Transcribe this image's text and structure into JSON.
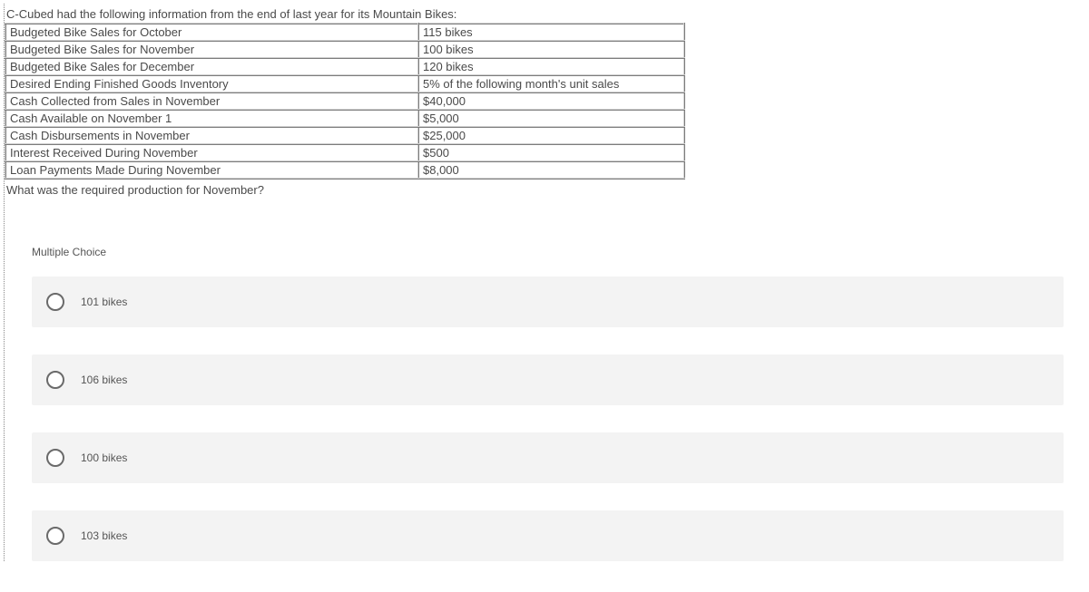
{
  "intro": "C-Cubed had the following information from the end of last year for its Mountain Bikes:",
  "table": {
    "rows": [
      {
        "label": "Budgeted Bike Sales for October",
        "value": "115 bikes"
      },
      {
        "label": "Budgeted Bike Sales for November",
        "value": "100 bikes"
      },
      {
        "label": "Budgeted Bike Sales for December",
        "value": "120 bikes"
      },
      {
        "label": "Desired Ending Finished Goods Inventory",
        "value": "5% of the following month's unit sales"
      },
      {
        "label": "Cash Collected from Sales in November",
        "value": "$40,000"
      },
      {
        "label": "Cash Available on November 1",
        "value": "$5,000"
      },
      {
        "label": "Cash Disbursements in November",
        "value": "$25,000"
      },
      {
        "label": "Interest Received During November",
        "value": "$500"
      },
      {
        "label": "Loan Payments Made During November",
        "value": "$8,000"
      }
    ]
  },
  "question": "What was the required production for November?",
  "mc_label": "Multiple Choice",
  "options": [
    {
      "text": "101 bikes"
    },
    {
      "text": "106 bikes"
    },
    {
      "text": "100 bikes"
    },
    {
      "text": "103 bikes"
    }
  ],
  "colors": {
    "text": "#4a4a4a",
    "option_bg": "#f3f3f3",
    "radio_border": "#6a6a6a"
  }
}
